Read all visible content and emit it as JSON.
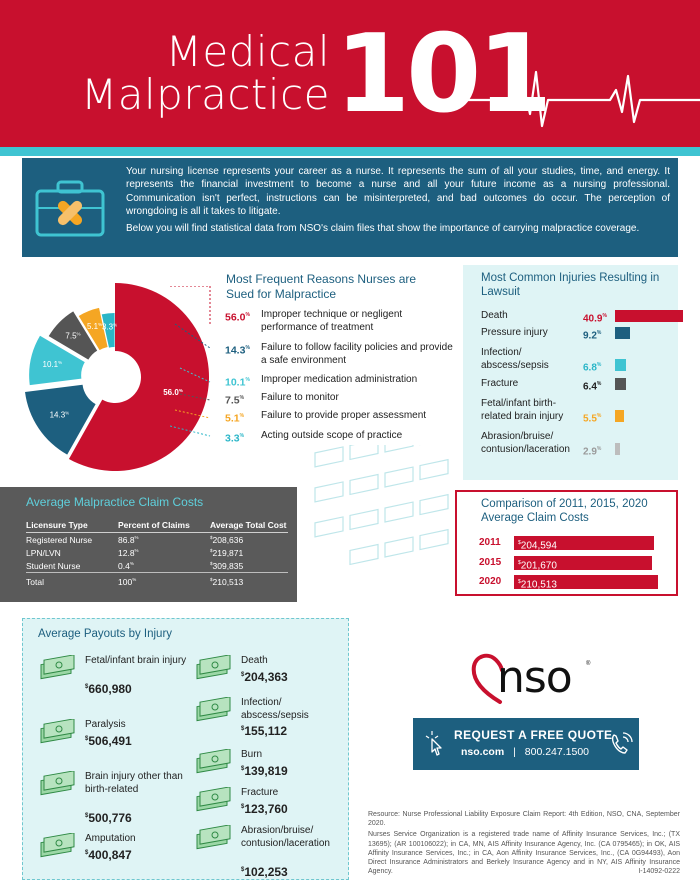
{
  "header": {
    "title_line1": "Medical",
    "title_line2": "Malpractice",
    "title_number": "101"
  },
  "intro": {
    "paragraph1": "Your nursing license represents your career as a nurse. It represents the sum of all your studies, time, and energy. It represents the financial investment to become a nurse and all your future income as a nursing professional. Communication isn't perfect, instructions can be misinterpreted, and bad outcomes do occur. The perception of wrongdoing is all it takes to litigate.",
    "paragraph2": "Below you will find statistical data from NSO's claim files that show the importance of carrying malpractice coverage."
  },
  "reasons": {
    "title": "Most Frequent Reasons Nurses are Sued for Malpractice",
    "items": [
      {
        "pct": "56.0",
        "label": "Improper technique or negligent performance of treatment",
        "color": "#c8102e"
      },
      {
        "pct": "14.3",
        "label": "Failure to follow facility policies and provide a safe environment",
        "color": "#1d5f7f"
      },
      {
        "pct": "10.1",
        "label": "Improper medication administration",
        "color": "#3fc4d2"
      },
      {
        "pct": "7.5",
        "label": "Failure to monitor",
        "color": "#555555"
      },
      {
        "pct": "5.1",
        "label": "Failure to provide proper assessment",
        "color": "#f5a623"
      },
      {
        "pct": "3.3",
        "label": "Acting outside scope of practice",
        "color": "#2bb6c8"
      }
    ]
  },
  "injuries": {
    "title": "Most Common Injuries Resulting in Lawsuit",
    "items": [
      {
        "label": "Death",
        "value": "40.9",
        "pct": 40.9,
        "color": "#c8102e"
      },
      {
        "label": "Pressure injury",
        "value": "9.2",
        "pct": 9.2,
        "color": "#1d5f7f"
      },
      {
        "label": "Infection/ abscess/sepsis",
        "value": "6.8",
        "pct": 6.8,
        "color": "#3fc4d2"
      },
      {
        "label": "Fracture",
        "value": "6.4",
        "pct": 6.4,
        "color": "#555555"
      },
      {
        "label": "Fetal/infant birth-related brain injury",
        "value": "5.5",
        "pct": 5.5,
        "color": "#f5a623"
      },
      {
        "label": "Abrasion/bruise/ contusion/laceration",
        "value": "2.9",
        "pct": 2.9,
        "color": "#bdbdbd"
      }
    ]
  },
  "costs": {
    "title": "Average Malpractice Claim Costs",
    "headers": [
      "Licensure Type",
      "Percent of Claims",
      "Average Total Cost"
    ],
    "rows": [
      {
        "type": "Registered Nurse",
        "pct": "86.8",
        "cost": "208,636"
      },
      {
        "type": "LPN/LVN",
        "pct": "12.8",
        "cost": "219,871"
      },
      {
        "type": "Student Nurse",
        "pct": "0.4",
        "cost": "309,835"
      },
      {
        "type": "Total",
        "pct": "100",
        "cost": "210,513"
      }
    ],
    "pct_sign": "%",
    "dollar_sign": "$"
  },
  "comparison": {
    "title": "Comparison of 2011, 2015, 2020 Average Claim Costs",
    "items": [
      {
        "year": "2011",
        "value": "204,594",
        "amount": 204594
      },
      {
        "year": "2015",
        "value": "201,670",
        "amount": 201670
      },
      {
        "year": "2020",
        "value": "210,513",
        "amount": 210513
      }
    ]
  },
  "payouts": {
    "title": "Average Payouts by Injury",
    "items": [
      {
        "label": "Fetal/infant brain injury",
        "amount": "660,980"
      },
      {
        "label": "Paralysis",
        "amount": "506,491"
      },
      {
        "label": "Brain injury other than birth-related",
        "amount": "500,776"
      },
      {
        "label": "Amputation",
        "amount": "400,847"
      },
      {
        "label": "Death",
        "amount": "204,363"
      },
      {
        "label": "Infection/ abscess/sepsis",
        "amount": "155,112"
      },
      {
        "label": "Burn",
        "amount": "139,819"
      },
      {
        "label": "Fracture",
        "amount": "123,760"
      },
      {
        "label": "Abrasion/bruise/ contusion/laceration",
        "amount": "102,253"
      }
    ]
  },
  "brand": {
    "logo": "nso",
    "registered": "®",
    "cta_title": "REQUEST A FREE QUOTE",
    "cta_site": "nso.com",
    "cta_separator": "|",
    "cta_phone": "800.247.1500",
    "click_icon": "pointer-click-icon",
    "phone_icon": "phone-icon"
  },
  "footer": {
    "resource": "Resource: Nurse Professional Liability Exposure Claim Report: 4th Edition, NSO, CNA, September 2020.",
    "legal": "Nurses Service Organization is a registered trade name of Affinity Insurance Services, Inc.; (TX 13695); (AR 100106022); in CA, MN, AIS Affinity Insurance Agency, Inc. (CA 0795465); in OK, AIS Affinity Insurance Services, Inc.; in CA, Aon Affinity Insurance Services, Inc., (CA 0G94493), Aon Direct Insurance Administrators and Berkely Insurance Agency and in NY, AIS Affinity Insurance Agency.",
    "code": "I-14092-0222"
  },
  "chart_data": [
    {
      "type": "pie",
      "title": "Most Frequent Reasons Nurses are Sued for Malpractice",
      "categories": [
        "Improper technique or negligent performance of treatment",
        "Failure to follow facility policies and provide a safe environment",
        "Improper medication administration",
        "Failure to monitor",
        "Failure to provide proper assessment",
        "Acting outside scope of practice"
      ],
      "values": [
        56.0,
        14.3,
        10.1,
        7.5,
        5.1,
        3.3
      ],
      "slice_labels": [
        "56.0",
        "14.3",
        "10.1",
        "7.5",
        "5.1",
        "3.3"
      ],
      "colors": [
        "#c8102e",
        "#1d5f7f",
        "#3fc4d2",
        "#555555",
        "#f5a623",
        "#2bb6c8"
      ]
    },
    {
      "type": "bar",
      "title": "Most Common Injuries Resulting in Lawsuit",
      "categories": [
        "Death",
        "Pressure injury",
        "Infection/abscess/sepsis",
        "Fracture",
        "Fetal/infant birth-related brain injury",
        "Abrasion/bruise/contusion/laceration"
      ],
      "values": [
        40.9,
        9.2,
        6.8,
        6.4,
        5.5,
        2.9
      ]
    },
    {
      "type": "bar",
      "title": "Comparison of 2011, 2015, 2020 Average Claim Costs",
      "categories": [
        "2011",
        "2015",
        "2020"
      ],
      "values": [
        204594,
        201670,
        210513
      ]
    },
    {
      "type": "table",
      "title": "Average Malpractice Claim Costs",
      "columns": [
        "Licensure Type",
        "Percent of Claims",
        "Average Total Cost"
      ],
      "rows": [
        [
          "Registered Nurse",
          86.8,
          208636
        ],
        [
          "LPN/LVN",
          12.8,
          219871
        ],
        [
          "Student Nurse",
          0.4,
          309835
        ],
        [
          "Total",
          100,
          210513
        ]
      ]
    }
  ]
}
